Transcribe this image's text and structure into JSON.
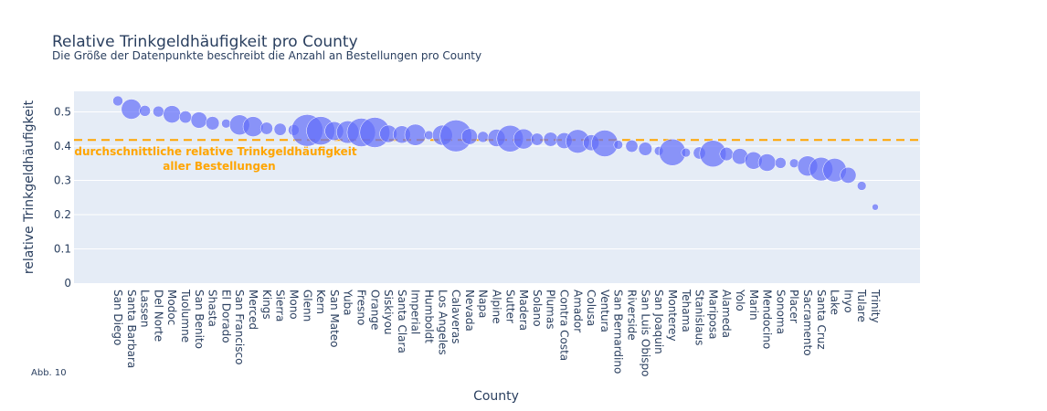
{
  "chart_data": {
    "type": "scatter",
    "title": "Relative Trinkgeldhäufigkeit pro County",
    "subtitle": "Die Größe der Datenpunkte beschreibt die Anzahl an Bestellungen pro County",
    "xlabel": "County",
    "ylabel": "relative Trinkgeldhäufigkeit",
    "ylim": [
      0,
      0.56
    ],
    "yticks": [
      "0",
      "0.1",
      "0.2",
      "0.3",
      "0.4",
      "0.5"
    ],
    "grid": true,
    "marker_color": "#636efa",
    "reference_line": {
      "y": 0.418,
      "color": "#FFA500",
      "style": "dashed",
      "label_line1": "durchschnittliche relative Trinkgeldhäufigkeit",
      "label_line2": "aller Bestellungen"
    },
    "points": [
      {
        "county": "San Diego",
        "value": 0.532,
        "size": 1
      },
      {
        "county": "Santa Barbara",
        "value": 0.508,
        "size": 4
      },
      {
        "county": "Lassen",
        "value": 0.503,
        "size": 1.2
      },
      {
        "county": "Del Norte",
        "value": 0.501,
        "size": 1.2
      },
      {
        "county": "Modoc",
        "value": 0.493,
        "size": 3
      },
      {
        "county": "Tuolumne",
        "value": 0.485,
        "size": 1.5
      },
      {
        "county": "San Benito",
        "value": 0.476,
        "size": 2.6
      },
      {
        "county": "Shasta",
        "value": 0.467,
        "size": 1.8
      },
      {
        "county": "El Dorado",
        "value": 0.466,
        "size": 0.8
      },
      {
        "county": "San Francisco",
        "value": 0.462,
        "size": 4
      },
      {
        "county": "Merced",
        "value": 0.457,
        "size": 4
      },
      {
        "county": "Kings",
        "value": 0.452,
        "size": 1.5
      },
      {
        "county": "Sierra",
        "value": 0.449,
        "size": 1.5
      },
      {
        "county": "Mono",
        "value": 0.447,
        "size": 1.2
      },
      {
        "county": "Glenn",
        "value": 0.446,
        "size": 10
      },
      {
        "county": "Kern",
        "value": 0.445,
        "size": 8
      },
      {
        "county": "San Mateo",
        "value": 0.444,
        "size": 3.5
      },
      {
        "county": "Yuba",
        "value": 0.441,
        "size": 5
      },
      {
        "county": "Fresno",
        "value": 0.44,
        "size": 8
      },
      {
        "county": "Orange",
        "value": 0.44,
        "size": 9
      },
      {
        "county": "Siskiyou",
        "value": 0.436,
        "size": 3
      },
      {
        "county": "Santa Clara",
        "value": 0.434,
        "size": 3
      },
      {
        "county": "Imperial",
        "value": 0.433,
        "size": 4.5
      },
      {
        "county": "Humboldt",
        "value": 0.432,
        "size": 0.8
      },
      {
        "county": "Los Angeles",
        "value": 0.432,
        "size": 4
      },
      {
        "county": "Calaveras",
        "value": 0.43,
        "size": 10
      },
      {
        "county": "Nevada",
        "value": 0.428,
        "size": 2.5
      },
      {
        "county": "Napa",
        "value": 0.427,
        "size": 1.2
      },
      {
        "county": "Alpine",
        "value": 0.424,
        "size": 3
      },
      {
        "county": "Sutter",
        "value": 0.422,
        "size": 7
      },
      {
        "county": "Madera",
        "value": 0.421,
        "size": 4
      },
      {
        "county": "Solano",
        "value": 0.42,
        "size": 1.5
      },
      {
        "county": "Plumas",
        "value": 0.42,
        "size": 2
      },
      {
        "county": "Contra Costa",
        "value": 0.416,
        "size": 2.5
      },
      {
        "county": "Amador",
        "value": 0.414,
        "size": 5.5
      },
      {
        "county": "Colusa",
        "value": 0.41,
        "size": 2.5
      },
      {
        "county": "Ventura",
        "value": 0.408,
        "size": 7
      },
      {
        "county": "San Bernardino",
        "value": 0.404,
        "size": 0.8
      },
      {
        "county": "Riverside",
        "value": 0.4,
        "size": 1.5
      },
      {
        "county": "San Luis Obispo",
        "value": 0.392,
        "size": 1.8
      },
      {
        "county": "San Joaquin",
        "value": 0.386,
        "size": 0.8
      },
      {
        "county": "Monterey",
        "value": 0.382,
        "size": 7
      },
      {
        "county": "Tehama",
        "value": 0.381,
        "size": 0.8
      },
      {
        "county": "Stanislaus",
        "value": 0.38,
        "size": 1.5
      },
      {
        "county": "Mariposa",
        "value": 0.378,
        "size": 7
      },
      {
        "county": "Alameda",
        "value": 0.377,
        "size": 1.8
      },
      {
        "county": "Yolo",
        "value": 0.37,
        "size": 2.5
      },
      {
        "county": "Marin",
        "value": 0.358,
        "size": 3
      },
      {
        "county": "Mendocino",
        "value": 0.352,
        "size": 3
      },
      {
        "county": "Sonoma",
        "value": 0.351,
        "size": 1.2
      },
      {
        "county": "Placer",
        "value": 0.35,
        "size": 0.8
      },
      {
        "county": "Sacramento",
        "value": 0.342,
        "size": 4
      },
      {
        "county": "Santa Cruz",
        "value": 0.333,
        "size": 5.5
      },
      {
        "county": "Lake",
        "value": 0.33,
        "size": 5.5
      },
      {
        "county": "Inyo",
        "value": 0.315,
        "size": 2.5
      },
      {
        "county": "Tulare",
        "value": 0.284,
        "size": 0.8
      },
      {
        "county": "Trinity",
        "value": 0.222,
        "size": 0.4
      }
    ]
  },
  "figure_note": "Abb. 10"
}
